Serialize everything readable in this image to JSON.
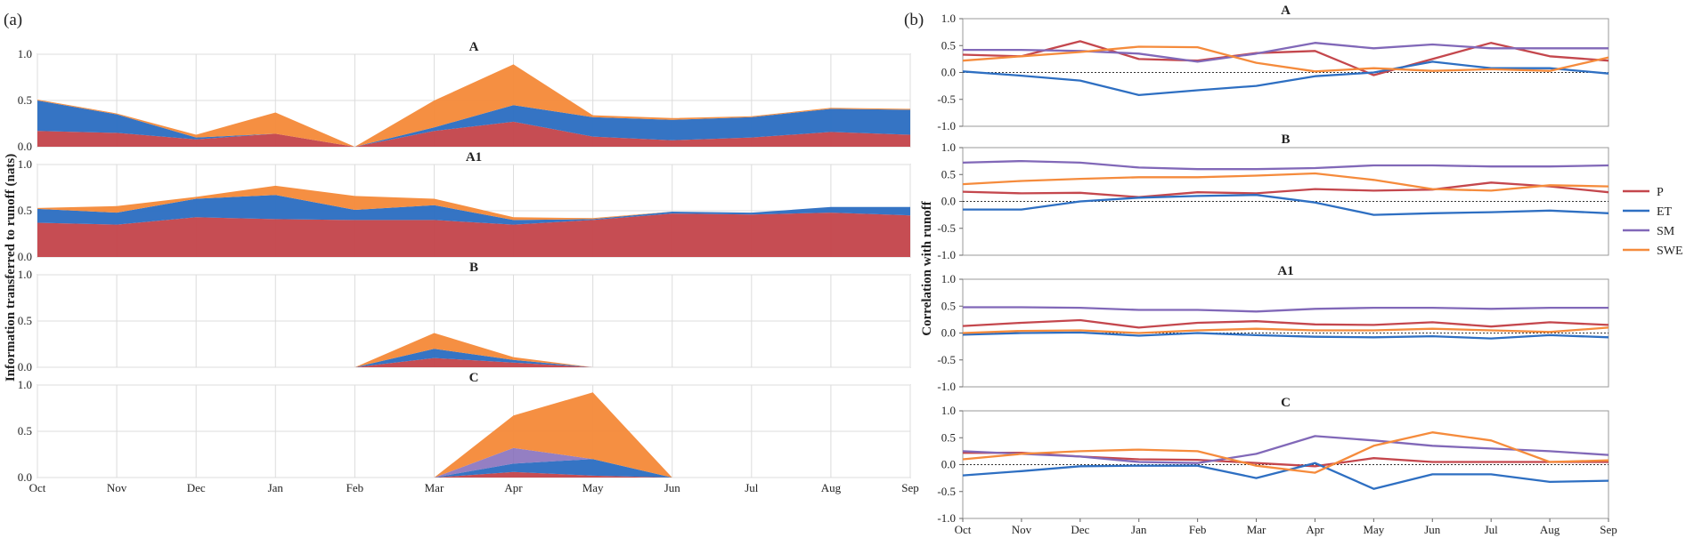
{
  "panel_labels": [
    "(a)",
    "(b)"
  ],
  "colors": {
    "P": "#c4474d",
    "ET": "#2e6fc2",
    "SM": "#8168b8",
    "SWE": "#f58b3c"
  },
  "chart_data": [
    {
      "type": "area",
      "stacked": true,
      "panel": "(a)",
      "ylabel": "Information transferred to runoff (nats)",
      "xlabel": "",
      "categories": [
        "Oct",
        "Nov",
        "Dec",
        "Jan",
        "Feb",
        "Mar",
        "Apr",
        "May",
        "Jun",
        "Jul",
        "Aug",
        "Sep"
      ],
      "ylim": [
        0,
        1.0
      ],
      "yticks": [
        "0.0",
        "0.5",
        "1.0"
      ],
      "grid": true,
      "subplots": [
        {
          "title": "A",
          "series": [
            {
              "name": "P",
              "values": [
                0.17,
                0.15,
                0.08,
                0.14,
                0.0,
                0.17,
                0.27,
                0.11,
                0.07,
                0.1,
                0.16,
                0.13
              ]
            },
            {
              "name": "ET",
              "values": [
                0.33,
                0.2,
                0.02,
                0.0,
                0.0,
                0.04,
                0.18,
                0.21,
                0.22,
                0.22,
                0.25,
                0.27
              ]
            },
            {
              "name": "SM",
              "values": [
                0,
                0,
                0,
                0,
                0,
                0,
                0,
                0,
                0,
                0,
                0,
                0
              ]
            },
            {
              "name": "SWE",
              "values": [
                0.01,
                0.01,
                0.03,
                0.23,
                0.0,
                0.29,
                0.44,
                0.02,
                0.02,
                0.01,
                0.01,
                0.01
              ]
            }
          ]
        },
        {
          "title": "A1",
          "series": [
            {
              "name": "P",
              "values": [
                0.37,
                0.35,
                0.43,
                0.41,
                0.4,
                0.4,
                0.35,
                0.4,
                0.47,
                0.46,
                0.48,
                0.45
              ]
            },
            {
              "name": "ET",
              "values": [
                0.15,
                0.13,
                0.2,
                0.26,
                0.11,
                0.16,
                0.05,
                0.01,
                0.02,
                0.02,
                0.06,
                0.09
              ]
            },
            {
              "name": "SM",
              "values": [
                0,
                0,
                0,
                0,
                0,
                0,
                0,
                0,
                0,
                0,
                0,
                0
              ]
            },
            {
              "name": "SWE",
              "values": [
                0.01,
                0.07,
                0.02,
                0.1,
                0.15,
                0.07,
                0.03,
                0.01,
                0.0,
                0.0,
                0.0,
                0.0
              ]
            }
          ]
        },
        {
          "title": "B",
          "series": [
            {
              "name": "P",
              "values": [
                0,
                0,
                0,
                0,
                0,
                0.1,
                0.05,
                0,
                0,
                0,
                0,
                0
              ]
            },
            {
              "name": "ET",
              "values": [
                0,
                0,
                0,
                0,
                0,
                0.1,
                0.03,
                0,
                0,
                0,
                0,
                0
              ]
            },
            {
              "name": "SM",
              "values": [
                0,
                0,
                0,
                0,
                0,
                0,
                0,
                0,
                0,
                0,
                0,
                0
              ]
            },
            {
              "name": "SWE",
              "values": [
                0,
                0,
                0,
                0,
                0,
                0.17,
                0.03,
                0,
                0,
                0,
                0,
                0
              ]
            }
          ]
        },
        {
          "title": "C",
          "series": [
            {
              "name": "P",
              "values": [
                0,
                0,
                0,
                0,
                0,
                0,
                0.06,
                0.02,
                0,
                0,
                0,
                0
              ]
            },
            {
              "name": "ET",
              "values": [
                0,
                0,
                0,
                0,
                0,
                0,
                0.09,
                0.18,
                0,
                0,
                0,
                0
              ]
            },
            {
              "name": "SM",
              "values": [
                0,
                0,
                0,
                0,
                0,
                0,
                0.17,
                0,
                0,
                0,
                0,
                0
              ]
            },
            {
              "name": "SWE",
              "values": [
                0,
                0,
                0,
                0,
                0,
                0,
                0.35,
                0.72,
                0,
                0,
                0,
                0
              ]
            }
          ]
        }
      ]
    },
    {
      "type": "line",
      "panel": "(b)",
      "ylabel": "Correlation with runoff",
      "xlabel": "",
      "categories": [
        "Oct",
        "Nov",
        "Dec",
        "Jan",
        "Feb",
        "Mar",
        "Apr",
        "May",
        "Jun",
        "Jul",
        "Aug",
        "Sep"
      ],
      "ylim": [
        -1.0,
        1.0
      ],
      "yticks": [
        "-1.0",
        "-0.5",
        "0.0",
        "0.5",
        "1.0"
      ],
      "zero_line": "dotted",
      "grid": false,
      "legend": {
        "position": "right",
        "entries": [
          "P",
          "ET",
          "SM",
          "SWE"
        ]
      },
      "subplots": [
        {
          "title": "A",
          "series": [
            {
              "name": "P",
              "values": [
                0.33,
                0.3,
                0.58,
                0.25,
                0.22,
                0.36,
                0.4,
                -0.05,
                0.25,
                0.55,
                0.3,
                0.22
              ]
            },
            {
              "name": "ET",
              "values": [
                0.02,
                -0.06,
                -0.15,
                -0.42,
                -0.33,
                -0.25,
                -0.07,
                0.0,
                0.2,
                0.08,
                0.08,
                -0.02
              ]
            },
            {
              "name": "SM",
              "values": [
                0.42,
                0.42,
                0.4,
                0.35,
                0.2,
                0.35,
                0.55,
                0.45,
                0.52,
                0.45,
                0.45,
                0.45
              ]
            },
            {
              "name": "SWE",
              "values": [
                0.22,
                0.3,
                0.38,
                0.48,
                0.47,
                0.18,
                0.02,
                0.08,
                0.03,
                0.06,
                0.03,
                0.28
              ]
            }
          ]
        },
        {
          "title": "B",
          "series": [
            {
              "name": "P",
              "values": [
                0.18,
                0.15,
                0.16,
                0.08,
                0.17,
                0.15,
                0.23,
                0.2,
                0.22,
                0.35,
                0.28,
                0.17
              ]
            },
            {
              "name": "ET",
              "values": [
                -0.15,
                -0.15,
                0.0,
                0.07,
                0.1,
                0.12,
                -0.02,
                -0.25,
                -0.22,
                -0.2,
                -0.17,
                -0.22
              ]
            },
            {
              "name": "SM",
              "values": [
                0.72,
                0.75,
                0.72,
                0.63,
                0.6,
                0.6,
                0.62,
                0.67,
                0.67,
                0.65,
                0.65,
                0.67
              ]
            },
            {
              "name": "SWE",
              "values": [
                0.32,
                0.38,
                0.42,
                0.45,
                0.45,
                0.48,
                0.52,
                0.4,
                0.23,
                0.2,
                0.3,
                0.28
              ]
            }
          ]
        },
        {
          "title": "A1",
          "series": [
            {
              "name": "P",
              "values": [
                0.13,
                0.19,
                0.24,
                0.1,
                0.19,
                0.22,
                0.16,
                0.15,
                0.2,
                0.12,
                0.2,
                0.15
              ]
            },
            {
              "name": "ET",
              "values": [
                -0.03,
                0.0,
                0.01,
                -0.05,
                0.0,
                -0.04,
                -0.07,
                -0.08,
                -0.06,
                -0.1,
                -0.04,
                -0.08
              ]
            },
            {
              "name": "SM",
              "values": [
                0.48,
                0.48,
                0.47,
                0.43,
                0.43,
                0.4,
                0.45,
                0.47,
                0.47,
                0.45,
                0.47,
                0.47
              ]
            },
            {
              "name": "SWE",
              "values": [
                0.0,
                0.04,
                0.05,
                0.0,
                0.05,
                0.08,
                0.05,
                0.05,
                0.08,
                0.05,
                0.02,
                0.1
              ]
            }
          ]
        },
        {
          "title": "C",
          "series": [
            {
              "name": "P",
              "values": [
                0.22,
                0.22,
                0.15,
                0.1,
                0.09,
                0.03,
                -0.03,
                0.12,
                0.05,
                0.05,
                0.05,
                0.05
              ]
            },
            {
              "name": "ET",
              "values": [
                -0.2,
                -0.12,
                -0.03,
                -0.02,
                -0.02,
                -0.25,
                0.03,
                -0.45,
                -0.18,
                -0.18,
                -0.32,
                -0.3
              ]
            },
            {
              "name": "SM",
              "values": [
                0.25,
                0.2,
                0.15,
                0.05,
                0.03,
                0.2,
                0.53,
                0.45,
                0.35,
                0.3,
                0.25,
                0.18
              ]
            },
            {
              "name": "SWE",
              "values": [
                0.1,
                0.2,
                0.25,
                0.28,
                0.25,
                -0.02,
                -0.15,
                0.35,
                0.6,
                0.45,
                0.05,
                0.08
              ]
            }
          ]
        }
      ]
    }
  ]
}
